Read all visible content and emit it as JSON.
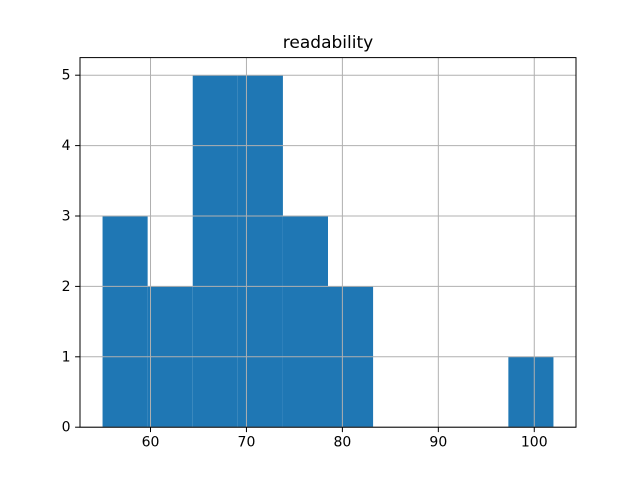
{
  "figure": {
    "background": "#ffffff"
  },
  "chart_data": {
    "type": "bar",
    "subtype": "histogram",
    "title": "readability",
    "xlabel": "",
    "ylabel": "",
    "bin_edges": [
      55.0,
      59.7,
      64.4,
      69.1,
      73.8,
      78.5,
      83.2,
      87.9,
      92.6,
      97.3,
      102.0
    ],
    "counts": [
      3,
      2,
      5,
      5,
      3,
      2,
      0,
      0,
      0,
      1
    ],
    "xticks": [
      "60",
      "70",
      "80",
      "90",
      "100"
    ],
    "xtick_values": [
      60,
      70,
      80,
      90,
      100
    ],
    "yticks": [
      "0",
      "1",
      "2",
      "3",
      "4",
      "5"
    ],
    "ytick_values": [
      0,
      1,
      2,
      3,
      4,
      5
    ],
    "xlim": [
      52.65,
      104.35
    ],
    "ylim": [
      0,
      5.25
    ],
    "grid": true,
    "grid_above_bars": true,
    "legend": null,
    "colors": {
      "bar": "#1f77b4",
      "grid": "#b0b0b0",
      "axis": "#000000",
      "text": "#000000",
      "background": "#ffffff"
    }
  }
}
